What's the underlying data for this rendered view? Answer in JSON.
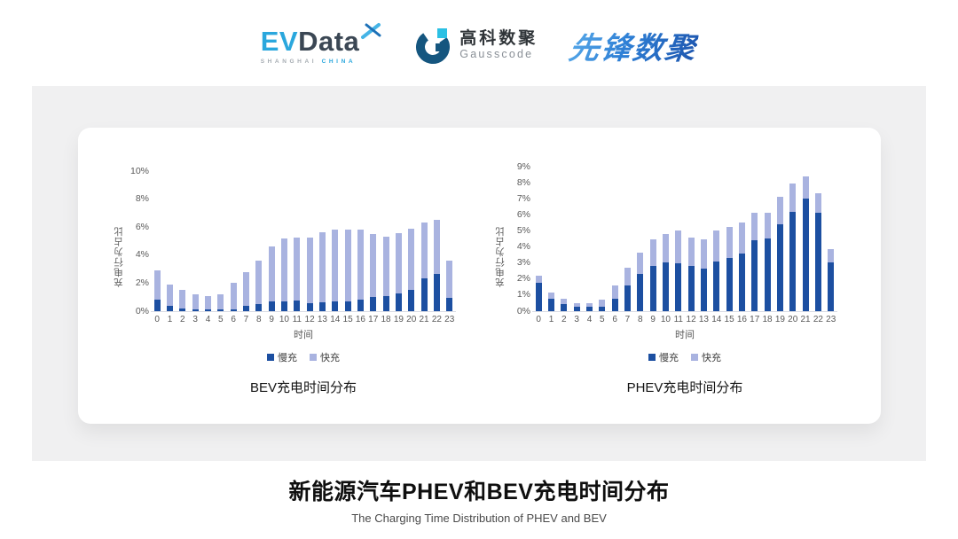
{
  "header": {
    "evdata": {
      "ev": "EV",
      "data": "Data",
      "sub_left": "SHANGHAI",
      "sub_right": "CHINA"
    },
    "gausscode": {
      "cn": "高科数聚",
      "en": "Gausscode"
    },
    "xianfeng": {
      "text": "先锋数聚"
    }
  },
  "colors": {
    "slow": "#1c4fa1",
    "fast": "#a9b3e0",
    "band_bg": "#f0f0f1",
    "axis_text": "#595959"
  },
  "chart_data": [
    {
      "type": "bar",
      "stacked": true,
      "title": "BEV充电时间分布",
      "xlabel": "时间",
      "ylabel": "充电行为占比",
      "ylim": [
        0,
        10
      ],
      "ytick_step": 2,
      "grid": false,
      "legend_position": "bottom",
      "categories": [
        "0",
        "1",
        "2",
        "3",
        "4",
        "5",
        "6",
        "7",
        "8",
        "9",
        "10",
        "11",
        "12",
        "13",
        "14",
        "15",
        "16",
        "17",
        "18",
        "19",
        "20",
        "21",
        "22",
        "23"
      ],
      "series": [
        {
          "name": "慢充",
          "color": "#1c4fa1",
          "values": [
            0.8,
            0.35,
            0.2,
            0.1,
            0.1,
            0.1,
            0.15,
            0.35,
            0.5,
            0.7,
            0.7,
            0.75,
            0.6,
            0.65,
            0.7,
            0.7,
            0.85,
            1.0,
            1.1,
            1.25,
            1.55,
            2.35,
            2.65,
            0.95
          ]
        },
        {
          "name": "快充",
          "color": "#a9b3e0",
          "values": [
            2.1,
            1.55,
            1.3,
            1.1,
            1.0,
            1.1,
            1.85,
            2.45,
            3.1,
            3.9,
            4.5,
            4.5,
            4.65,
            5.0,
            5.1,
            5.1,
            5.0,
            4.5,
            4.2,
            4.35,
            4.35,
            4.0,
            3.9,
            2.65
          ]
        }
      ]
    },
    {
      "type": "bar",
      "stacked": true,
      "title": "PHEV充电时间分布",
      "xlabel": "时间",
      "ylabel": "充电行为占比",
      "ylim": [
        0,
        9
      ],
      "ytick_step": 1,
      "grid": false,
      "legend_position": "bottom",
      "categories": [
        "0",
        "1",
        "2",
        "3",
        "4",
        "5",
        "6",
        "7",
        "8",
        "9",
        "10",
        "11",
        "12",
        "13",
        "14",
        "15",
        "16",
        "17",
        "18",
        "19",
        "20",
        "21",
        "22",
        "23"
      ],
      "series": [
        {
          "name": "慢充",
          "color": "#1c4fa1",
          "values": [
            1.75,
            0.75,
            0.45,
            0.25,
            0.25,
            0.3,
            0.75,
            1.6,
            2.3,
            2.8,
            3.05,
            3.0,
            2.8,
            2.65,
            3.1,
            3.3,
            3.6,
            4.4,
            4.55,
            5.4,
            6.2,
            7.0,
            6.15,
            3.05
          ]
        },
        {
          "name": "快充",
          "color": "#a9b3e0",
          "values": [
            0.45,
            0.4,
            0.3,
            0.25,
            0.25,
            0.4,
            0.85,
            1.1,
            1.35,
            1.7,
            1.75,
            2.0,
            1.8,
            1.85,
            1.9,
            1.95,
            1.9,
            1.75,
            1.6,
            1.7,
            1.75,
            1.4,
            1.2,
            0.8
          ]
        }
      ]
    }
  ],
  "footer": {
    "title_cn": "新能源汽车PHEV和BEV充电时间分布",
    "title_en": "The Charging Time Distribution of PHEV and BEV"
  }
}
